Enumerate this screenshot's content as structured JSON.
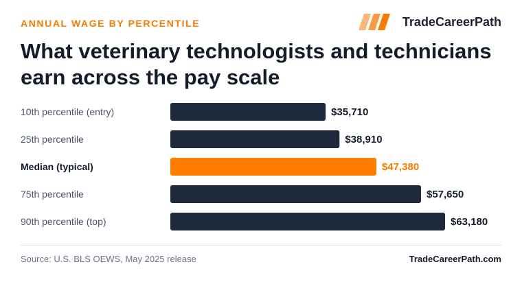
{
  "header": {
    "eyebrow": "ANNUAL WAGE BY PERCENTILE",
    "brand_name": "TradeCareerPath",
    "brand_icon": "slanted-bars-logo-icon",
    "title": "What veterinary technologists and technicians earn across the pay scale"
  },
  "footer": {
    "source": "Source: U.S. BLS OEWS, May 2025 release",
    "site": "TradeCareerPath.com"
  },
  "colors": {
    "accent": "#f57c00",
    "bar": "#1e293b",
    "highlight_bar": "#ff7d00",
    "text": "#141c2b",
    "muted": "#4a5366"
  },
  "chart_data": {
    "type": "bar",
    "orientation": "horizontal",
    "categories": [
      "10th percentile (entry)",
      "25th percentile",
      "Median (typical)",
      "75th percentile",
      "90th percentile (top)"
    ],
    "values": [
      35710,
      38910,
      47380,
      57650,
      63180
    ],
    "value_labels": [
      "$35,710",
      "$38,910",
      "$47,380",
      "$57,650",
      "$63,180"
    ],
    "highlight_index": 2,
    "xlim": [
      0,
      63180
    ],
    "grid": false,
    "legend": "none"
  }
}
